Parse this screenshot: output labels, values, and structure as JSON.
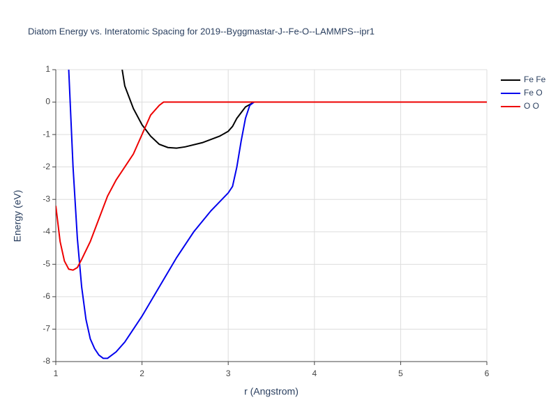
{
  "chart_data": {
    "type": "line",
    "title": "Diatom Energy vs. Interatomic Spacing for 2019--Byggmastar-J--Fe-O--LAMMPS--ipr1",
    "x_label": "r (Angstrom)",
    "y_label": "Energy (eV)",
    "xlim": [
      1,
      6
    ],
    "ylim": [
      -8,
      1
    ],
    "xticks": [
      1,
      2,
      3,
      4,
      5,
      6
    ],
    "yticks": [
      -8,
      -7,
      -6,
      -5,
      -4,
      -3,
      -2,
      -1,
      0,
      1
    ],
    "grid": true,
    "legend": "top-right",
    "series": [
      {
        "name": "Fe Fe",
        "color": "#000000",
        "x": [
          1.77,
          1.8,
          1.9,
          2.0,
          2.1,
          2.2,
          2.3,
          2.4,
          2.5,
          2.7,
          2.9,
          3.0,
          3.05,
          3.1,
          3.2,
          3.3,
          4,
          5,
          6
        ],
        "values": [
          1.0,
          0.5,
          -0.2,
          -0.7,
          -1.05,
          -1.3,
          -1.4,
          -1.42,
          -1.38,
          -1.25,
          -1.05,
          -0.9,
          -0.75,
          -0.5,
          -0.15,
          0,
          0,
          0,
          0
        ]
      },
      {
        "name": "Fe O",
        "color": "#0000ee",
        "x": [
          1.15,
          1.2,
          1.25,
          1.3,
          1.35,
          1.4,
          1.45,
          1.5,
          1.55,
          1.6,
          1.7,
          1.8,
          1.9,
          2.0,
          2.2,
          2.4,
          2.6,
          2.8,
          3.0,
          3.05,
          3.1,
          3.15,
          3.2,
          3.25,
          3.3,
          4,
          5,
          6
        ],
        "values": [
          1.0,
          -2.0,
          -4.2,
          -5.7,
          -6.7,
          -7.3,
          -7.6,
          -7.8,
          -7.9,
          -7.9,
          -7.7,
          -7.4,
          -7.0,
          -6.6,
          -5.7,
          -4.8,
          -4.0,
          -3.35,
          -2.8,
          -2.6,
          -2.0,
          -1.2,
          -0.5,
          -0.1,
          0,
          0,
          0,
          0
        ]
      },
      {
        "name": "O O",
        "color": "#ee0000",
        "x": [
          1.0,
          1.05,
          1.1,
          1.15,
          1.2,
          1.25,
          1.3,
          1.4,
          1.5,
          1.6,
          1.7,
          1.8,
          1.9,
          2.0,
          2.1,
          2.2,
          2.25,
          2.3,
          3,
          4,
          5,
          6
        ],
        "values": [
          -3.2,
          -4.3,
          -4.9,
          -5.15,
          -5.18,
          -5.1,
          -4.85,
          -4.3,
          -3.6,
          -2.9,
          -2.4,
          -2.0,
          -1.6,
          -1.0,
          -0.4,
          -0.1,
          0,
          0,
          0,
          0,
          0,
          0
        ]
      }
    ]
  }
}
